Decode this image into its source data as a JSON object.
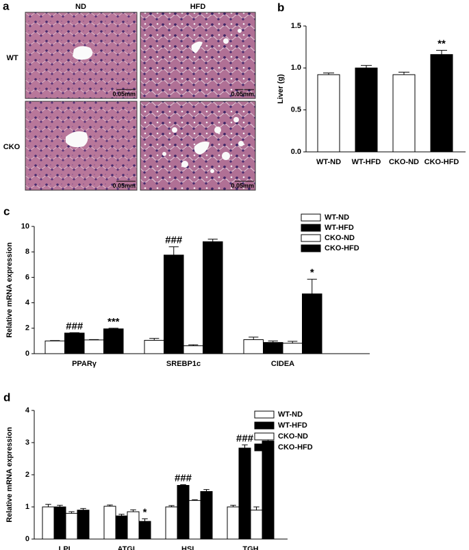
{
  "panel_a": {
    "label": "a",
    "columns": [
      "ND",
      "HFD"
    ],
    "rows": [
      "WT",
      "CKO"
    ],
    "scale_bars": [
      "0.05mm",
      "0.05mm",
      "0.05mm",
      "0.05mm"
    ]
  },
  "chart_data": [
    {
      "type": "bar",
      "panel": "b",
      "ylabel": "Liver (g)",
      "categories": [
        "WT-ND",
        "WT-HFD",
        "CKO-ND",
        "CKO-HFD"
      ],
      "values": [
        0.92,
        1.0,
        0.92,
        1.16
      ],
      "errors": [
        0.02,
        0.03,
        0.03,
        0.05
      ],
      "colors": [
        "#ffffff",
        "#000000",
        "#ffffff",
        "#000000"
      ],
      "annotations": [
        null,
        null,
        null,
        "**"
      ],
      "ylim": [
        0,
        1.5
      ],
      "yticks": [
        {
          "value": 0,
          "label": "0.0"
        },
        {
          "value": 0.5,
          "label": "0.5"
        },
        {
          "value": 1,
          "label": "1.0"
        },
        {
          "value": 1.5,
          "label": "1.5"
        }
      ]
    },
    {
      "type": "bar",
      "panel": "c",
      "ylabel": "Relative mRNA expression",
      "categories": [
        "PPARγ",
        "SREBP1c",
        "CIDEA"
      ],
      "series": [
        {
          "name": "WT-ND",
          "color": "#ffffff",
          "values": [
            1.0,
            1.05,
            1.1
          ],
          "errors": [
            0.03,
            0.15,
            0.2
          ],
          "annotations": [
            null,
            null,
            null
          ]
        },
        {
          "name": "WT-HFD",
          "color": "#000000",
          "values": [
            1.62,
            7.75,
            0.88
          ],
          "errors": [
            0.03,
            0.65,
            0.12
          ],
          "annotations": [
            "###",
            "###",
            null
          ]
        },
        {
          "name": "CKO-ND",
          "color": "#ffffff",
          "values": [
            1.08,
            0.62,
            0.82
          ],
          "errors": [
            0.03,
            0.08,
            0.15
          ],
          "annotations": [
            null,
            null,
            null
          ]
        },
        {
          "name": "CKO-HFD",
          "color": "#000000",
          "values": [
            1.95,
            8.8,
            4.7
          ],
          "errors": [
            0.05,
            0.2,
            1.15
          ],
          "annotations": [
            "***",
            null,
            "*"
          ]
        }
      ],
      "ylim": [
        0,
        10
      ],
      "yticks": [
        0,
        2,
        4,
        6,
        8,
        10
      ],
      "legend": "upper right"
    },
    {
      "type": "bar",
      "panel": "d",
      "ylabel": "Relative mRNA expression",
      "categories": [
        "LPL",
        "ATGL",
        "HSL",
        "TGH"
      ],
      "series": [
        {
          "name": "WT-ND",
          "color": "#ffffff",
          "values": [
            1.0,
            1.02,
            1.0,
            1.0
          ],
          "errors": [
            0.08,
            0.04,
            0.04,
            0.05
          ],
          "annotations": [
            null,
            null,
            null,
            null
          ]
        },
        {
          "name": "WT-HFD",
          "color": "#000000",
          "values": [
            1.0,
            0.72,
            1.67,
            2.83
          ],
          "errors": [
            0.05,
            0.05,
            0.02,
            0.1
          ],
          "annotations": [
            null,
            null,
            "###",
            "###"
          ]
        },
        {
          "name": "CKO-ND",
          "color": "#ffffff",
          "values": [
            0.8,
            0.85,
            1.2,
            0.9
          ],
          "errors": [
            0.05,
            0.06,
            0.02,
            0.1
          ],
          "annotations": [
            null,
            null,
            null,
            null
          ]
        },
        {
          "name": "CKO-HFD",
          "color": "#000000",
          "values": [
            0.9,
            0.55,
            1.48,
            3.05
          ],
          "errors": [
            0.05,
            0.08,
            0.06,
            0.18
          ],
          "annotations": [
            null,
            "*",
            null,
            null
          ]
        }
      ],
      "ylim": [
        0,
        4
      ],
      "yticks": [
        0,
        1,
        2,
        3,
        4
      ],
      "legend": "upper right"
    }
  ]
}
